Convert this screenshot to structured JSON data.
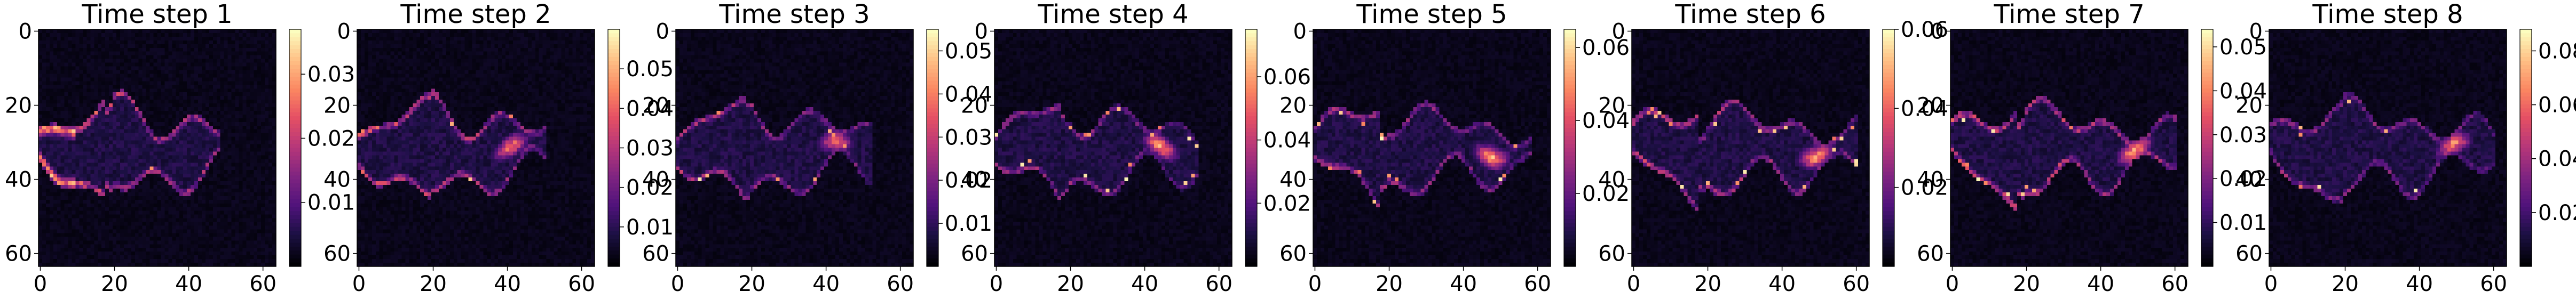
{
  "figure": {
    "colormap": "magma",
    "background": "#ffffff"
  },
  "chart_data": [
    {
      "type": "heatmap",
      "title": "Time step 1",
      "x_ticks": [
        "0",
        "20",
        "40",
        "60"
      ],
      "y_ticks": [
        "0",
        "20",
        "40",
        "60"
      ],
      "xlim": [
        0,
        64
      ],
      "ylim": [
        64,
        0
      ],
      "colorbar": {
        "range": [
          0,
          0.037
        ],
        "ticks": [
          {
            "value": 0.01,
            "label": "0.01"
          },
          {
            "value": 0.02,
            "label": "0.02"
          },
          {
            "value": 0.03,
            "label": "0.03"
          }
        ]
      },
      "plume": {
        "length": 48,
        "bright_front": 0.14,
        "peak": 0.95,
        "ring": 0.75
      }
    },
    {
      "type": "heatmap",
      "title": "Time step 2",
      "x_ticks": [
        "0",
        "20",
        "40",
        "60"
      ],
      "y_ticks": [
        "0",
        "20",
        "40",
        "60"
      ],
      "xlim": [
        0,
        64
      ],
      "ylim": [
        64,
        0
      ],
      "colorbar": {
        "range": [
          0,
          0.06
        ],
        "ticks": [
          {
            "value": 0.01,
            "label": "0.01"
          },
          {
            "value": 0.02,
            "label": "0.02"
          },
          {
            "value": 0.03,
            "label": "0.03"
          },
          {
            "value": 0.04,
            "label": "0.04"
          },
          {
            "value": 0.05,
            "label": "0.05"
          }
        ]
      },
      "plume": {
        "length": 50,
        "bright_front": 0.2,
        "peak": 0.8,
        "ring": 0.7
      }
    },
    {
      "type": "heatmap",
      "title": "Time step 3",
      "x_ticks": [
        "0",
        "20",
        "40",
        "60"
      ],
      "y_ticks": [
        "0",
        "20",
        "40",
        "60"
      ],
      "xlim": [
        0,
        64
      ],
      "ylim": [
        64,
        0
      ],
      "colorbar": {
        "range": [
          0,
          0.055
        ],
        "ticks": [
          {
            "value": 0.01,
            "label": "0.01"
          },
          {
            "value": 0.02,
            "label": "0.02"
          },
          {
            "value": 0.03,
            "label": "0.03"
          },
          {
            "value": 0.04,
            "label": "0.04"
          },
          {
            "value": 0.05,
            "label": "0.05"
          }
        ]
      },
      "plume": {
        "length": 52,
        "bright_front": 0.55,
        "peak": 0.75,
        "ring": 0.55
      }
    },
    {
      "type": "heatmap",
      "title": "Time step 4",
      "x_ticks": [
        "0",
        "20",
        "40",
        "60"
      ],
      "y_ticks": [
        "0",
        "20",
        "40",
        "60"
      ],
      "xlim": [
        0,
        64
      ],
      "ylim": [
        64,
        0
      ],
      "colorbar": {
        "range": [
          0,
          0.075
        ],
        "ticks": [
          {
            "value": 0.02,
            "label": "0.02"
          },
          {
            "value": 0.04,
            "label": "0.04"
          },
          {
            "value": 0.06,
            "label": "0.06"
          }
        ]
      },
      "plume": {
        "length": 54,
        "bright_front": 0.75,
        "peak": 0.9,
        "ring": 0.5
      }
    },
    {
      "type": "heatmap",
      "title": "Time step 5",
      "x_ticks": [
        "0",
        "20",
        "40",
        "60"
      ],
      "y_ticks": [
        "0",
        "20",
        "40",
        "60"
      ],
      "xlim": [
        0,
        64
      ],
      "ylim": [
        64,
        0
      ],
      "colorbar": {
        "range": [
          0,
          0.065
        ],
        "ticks": [
          {
            "value": 0.02,
            "label": "0.02"
          },
          {
            "value": 0.04,
            "label": "0.04"
          },
          {
            "value": 0.06,
            "label": "0.06"
          }
        ]
      },
      "plume": {
        "length": 58,
        "bright_front": 0.85,
        "peak": 0.95,
        "ring": 0.55
      }
    },
    {
      "type": "heatmap",
      "title": "Time step 6",
      "x_ticks": [
        "0",
        "20",
        "40",
        "60"
      ],
      "y_ticks": [
        "0",
        "20",
        "40",
        "60"
      ],
      "xlim": [
        0,
        64
      ],
      "ylim": [
        64,
        0
      ],
      "colorbar": {
        "range": [
          0,
          0.06
        ],
        "ticks": [
          {
            "value": 0.02,
            "label": "0.02"
          },
          {
            "value": 0.04,
            "label": "0.04"
          },
          {
            "value": 0.06,
            "label": "0.06"
          }
        ]
      },
      "plume": {
        "length": 60,
        "bright_front": 0.7,
        "peak": 0.9,
        "ring": 0.6
      }
    },
    {
      "type": "heatmap",
      "title": "Time step 7",
      "x_ticks": [
        "0",
        "20",
        "40",
        "60"
      ],
      "y_ticks": [
        "0",
        "20",
        "40",
        "60"
      ],
      "xlim": [
        0,
        64
      ],
      "ylim": [
        64,
        0
      ],
      "colorbar": {
        "range": [
          0,
          0.054
        ],
        "ticks": [
          {
            "value": 0.01,
            "label": "0.01"
          },
          {
            "value": 0.02,
            "label": "0.02"
          },
          {
            "value": 0.03,
            "label": "0.03"
          },
          {
            "value": 0.04,
            "label": "0.04"
          },
          {
            "value": 0.05,
            "label": "0.05"
          }
        ]
      },
      "plume": {
        "length": 60,
        "bright_front": 0.7,
        "peak": 0.95,
        "ring": 0.7
      }
    },
    {
      "type": "heatmap",
      "title": "Time step 8",
      "x_ticks": [
        "0",
        "20",
        "40",
        "60"
      ],
      "y_ticks": [
        "0",
        "20",
        "40",
        "60"
      ],
      "xlim": [
        0,
        64
      ],
      "ylim": [
        64,
        0
      ],
      "colorbar": {
        "range": [
          0,
          0.088
        ],
        "ticks": [
          {
            "value": 0.02,
            "label": "0.02"
          },
          {
            "value": 0.04,
            "label": "0.04"
          },
          {
            "value": 0.06,
            "label": "0.06"
          },
          {
            "value": 0.08,
            "label": "0.08"
          }
        ]
      },
      "plume": {
        "length": 60,
        "bright_front": 0.45,
        "peak": 0.85,
        "ring": 0.5
      }
    }
  ]
}
